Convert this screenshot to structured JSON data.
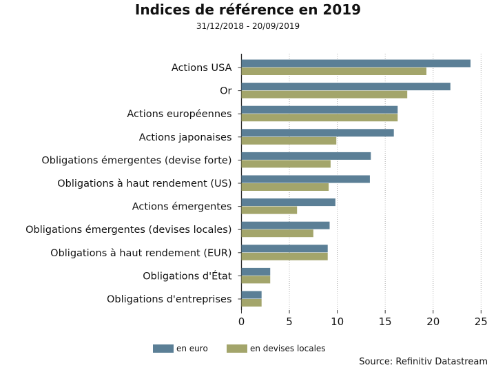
{
  "chart_data": {
    "type": "bar",
    "orientation": "horizontal",
    "title": "Indices de référence en 2019",
    "subtitle": "31/12/2018 - 20/09/2019",
    "source": "Source: Refinitiv Datastream",
    "categories": [
      "Actions USA",
      "Or",
      "Actions européennes",
      "Actions japonaises",
      "Obligations émergentes (devise forte)",
      "Obligations à haut rendement (US)",
      "Actions émergentes",
      "Obligations émergentes (devises locales)",
      "Obligations à haut rendement (EUR)",
      "Obligations d'État",
      "Obligations d'entreprises"
    ],
    "series": [
      {
        "name": "en euro",
        "color": "#5b7f96",
        "values": [
          23.9,
          21.8,
          16.3,
          15.9,
          13.5,
          13.4,
          9.8,
          9.2,
          9.0,
          3.0,
          2.1
        ]
      },
      {
        "name": "en devises locales",
        "color": "#a3a56b",
        "values": [
          19.3,
          17.3,
          16.3,
          9.9,
          9.3,
          9.1,
          5.8,
          7.5,
          9.0,
          3.0,
          2.1
        ]
      }
    ],
    "xlim": [
      0,
      25
    ],
    "xticks": [
      0,
      5,
      10,
      15,
      20,
      25
    ],
    "grid": "vertical dotted",
    "legend": "bottom"
  }
}
